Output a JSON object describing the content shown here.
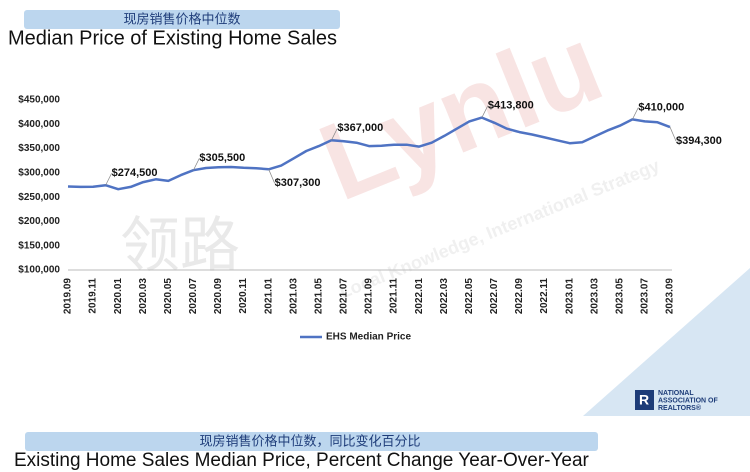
{
  "header": {
    "subtitle_cn": "现房销售价格中位数",
    "title": "Median Price of Existing Home Sales"
  },
  "chart_data": {
    "type": "line",
    "categories": [
      "2019.09",
      null,
      "2019.11",
      null,
      "2020.01",
      null,
      "2020.03",
      null,
      "2020.05",
      null,
      "2020.07",
      null,
      "2020.09",
      null,
      "2020.11",
      null,
      "2021.01",
      null,
      "2021.03",
      null,
      "2021.05",
      null,
      "2021.07",
      null,
      "2021.09",
      null,
      "2021.11",
      null,
      "2022.01",
      null,
      "2022.03",
      null,
      "2022.05",
      null,
      "2022.07",
      null,
      "2022.09",
      null,
      "2022.11",
      null,
      "2023.01",
      null,
      "2023.03",
      null,
      "2023.05",
      null,
      "2023.07",
      null,
      "2023.09"
    ],
    "series": [
      {
        "name": "EHS Median Price",
        "color": "#4f73c3",
        "values": [
          272000,
          271000,
          271500,
          274500,
          266300,
          271100,
          281000,
          286800,
          283500,
          295300,
          305500,
          310000,
          311500,
          312000,
          310500,
          309500,
          307300,
          315000,
          330000,
          345000,
          355000,
          367000,
          365000,
          362000,
          355000,
          356000,
          358000,
          358000,
          354000,
          362000,
          376000,
          391000,
          406000,
          413800,
          403000,
          391000,
          384000,
          379000,
          373000,
          367000,
          361000,
          363000,
          375000,
          387000,
          397000,
          410000,
          406000,
          404000,
          394300
        ],
        "value_labels": [
          null,
          null,
          null,
          "$274,500",
          null,
          null,
          null,
          null,
          null,
          null,
          "$305,500",
          null,
          null,
          null,
          null,
          null,
          "$307,300",
          null,
          null,
          null,
          null,
          "$367,000",
          null,
          null,
          null,
          null,
          null,
          null,
          null,
          null,
          null,
          null,
          null,
          "$413,800",
          null,
          null,
          null,
          null,
          null,
          null,
          null,
          null,
          null,
          null,
          null,
          "$410,000",
          null,
          null,
          "$394,300"
        ]
      }
    ],
    "ylim": [
      100000,
      450000
    ],
    "yticks": [
      {
        "value": 100000,
        "label": "$100,000"
      },
      {
        "value": 150000,
        "label": "$150,000"
      },
      {
        "value": 200000,
        "label": "$200,000"
      },
      {
        "value": 250000,
        "label": "$250,000"
      },
      {
        "value": 300000,
        "label": "$300,000"
      },
      {
        "value": 350000,
        "label": "$350,000"
      },
      {
        "value": 400000,
        "label": "$400,000"
      },
      {
        "value": 450000,
        "label": "$450,000"
      }
    ],
    "grid": false,
    "legend": "bottom"
  },
  "footer": {
    "subtitle_cn": "现房销售价格中位数，同比变化百分比",
    "title": "Existing Home Sales Median Price, Percent Change Year-Over-Year"
  },
  "logo": {
    "lines": [
      "NATIONAL",
      "ASSOCIATION OF",
      "REALTORS®"
    ]
  },
  "watermark": {
    "brand": "Lynlu",
    "tagline": "Local Knowledge, International Strategy",
    "cn": "领路"
  }
}
